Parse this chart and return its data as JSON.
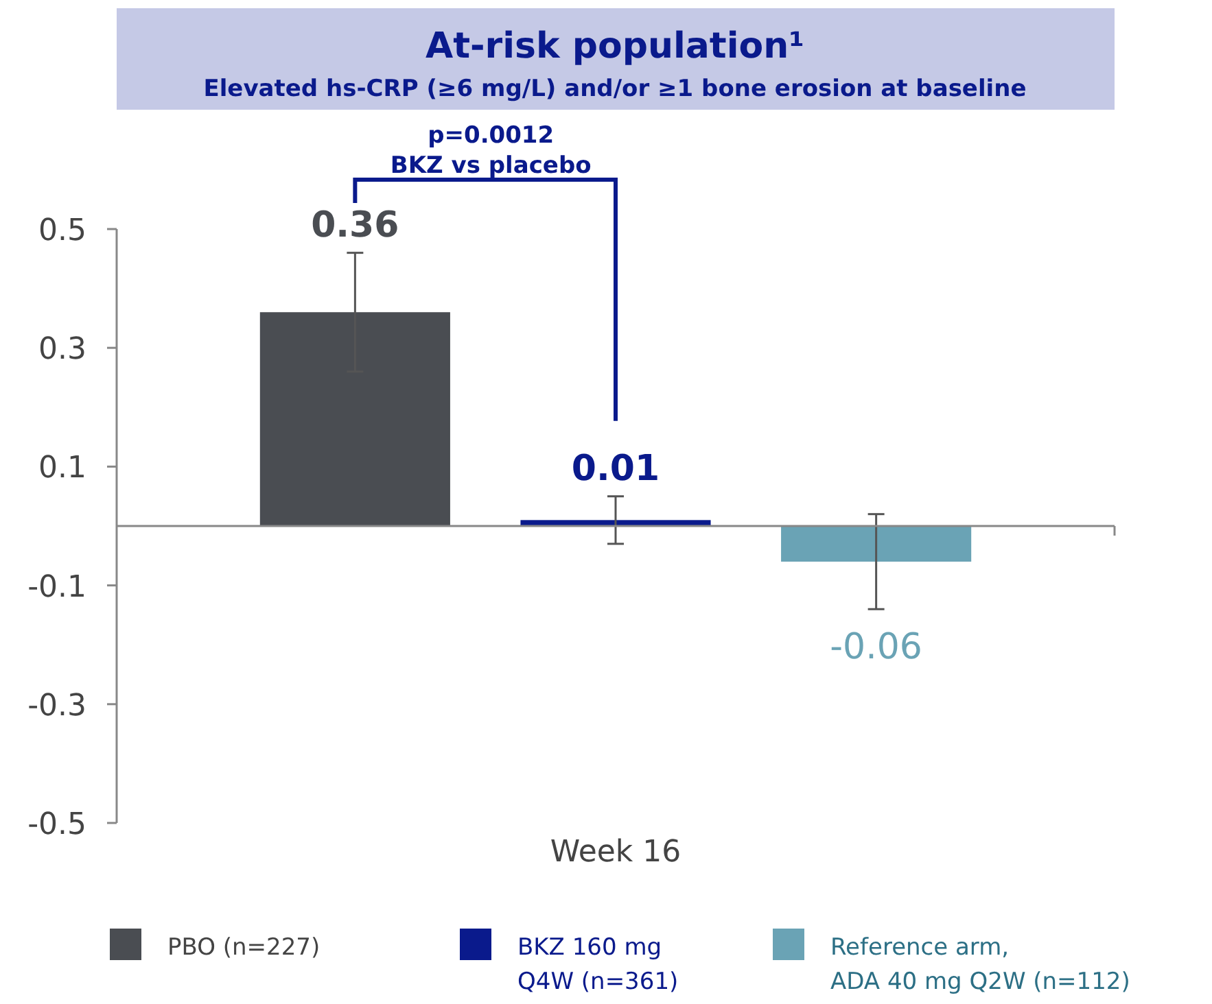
{
  "chart_data": {
    "type": "bar",
    "title": "At-risk population¹",
    "subtitle": "Elevated hs-CRP (≥6 mg/L) and/or ≥1 bone erosion at baseline",
    "categories": [
      "Week 16"
    ],
    "series": [
      {
        "name": "PBO (n=227)",
        "color": "#4a4d52",
        "values": [
          0.36
        ],
        "errors": [
          0.1
        ]
      },
      {
        "name": "BKZ 160 mg\nQ4W (n=361)",
        "color": "#0a1a8c",
        "values": [
          0.01
        ],
        "errors": [
          [
            -0.03,
            0.05
          ]
        ]
      },
      {
        "name": "Reference arm,\nADA 40 mg Q2W (n=112)",
        "color": "#6aa3b5",
        "values": [
          -0.06
        ],
        "errors": [
          [
            -0.14,
            0.02
          ]
        ]
      }
    ],
    "ylim": [
      -0.5,
      0.5
    ],
    "yticks": [
      -0.5,
      -0.3,
      -0.1,
      0.1,
      0.3,
      0.5
    ],
    "data_labels": true,
    "legend": "bottom",
    "grid": false,
    "annotations": [
      "p=0.0012\nBKZ vs placebo"
    ]
  }
}
